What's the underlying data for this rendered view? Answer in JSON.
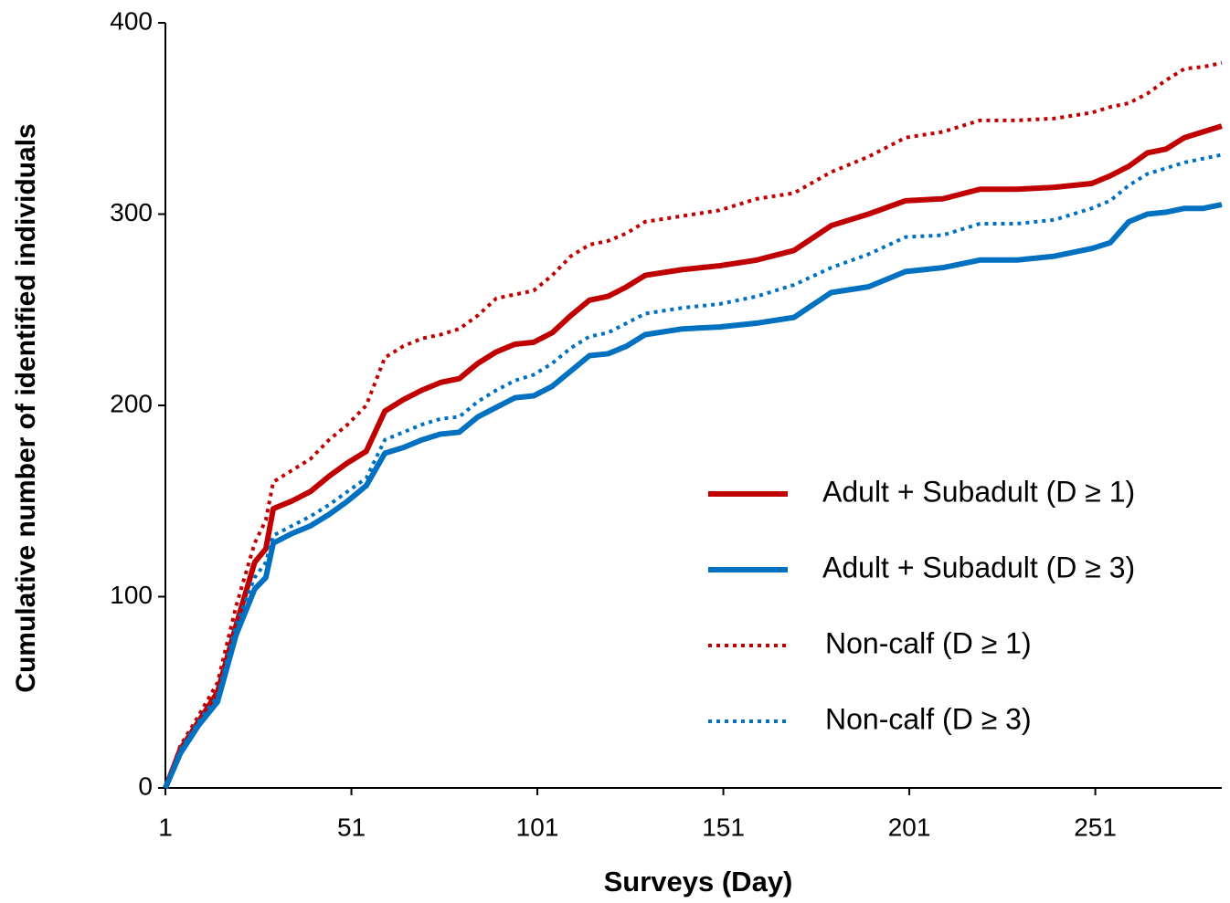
{
  "chart_data": {
    "type": "line",
    "xlabel": "Surveys  (Day)",
    "ylabel": "Cumulative number of identified individuals",
    "x": [
      1,
      5,
      10,
      15,
      20,
      25,
      28,
      30,
      35,
      40,
      45,
      50,
      55,
      60,
      65,
      70,
      75,
      80,
      85,
      90,
      95,
      100,
      105,
      110,
      115,
      120,
      125,
      130,
      140,
      150,
      160,
      170,
      180,
      190,
      200,
      210,
      220,
      230,
      240,
      250,
      255,
      260,
      265,
      270,
      275,
      280,
      285
    ],
    "series": [
      {
        "name": "Adult + Subadult (D ≥ 1)",
        "color": "#c00000",
        "dash": "solid",
        "values": [
          0,
          20,
          35,
          50,
          85,
          118,
          125,
          146,
          150,
          155,
          163,
          170,
          176,
          197,
          203,
          208,
          212,
          214,
          222,
          228,
          232,
          233,
          238,
          247,
          255,
          257,
          262,
          268,
          271,
          273,
          276,
          281,
          294,
          300,
          307,
          308,
          313,
          313,
          314,
          316,
          320,
          325,
          332,
          334,
          340,
          343,
          346
        ]
      },
      {
        "name": "Adult + Subadult (D ≥ 3)",
        "color": "#0070c0",
        "dash": "solid",
        "values": [
          0,
          18,
          33,
          45,
          80,
          104,
          110,
          128,
          133,
          137,
          143,
          150,
          158,
          175,
          178,
          182,
          185,
          186,
          194,
          199,
          204,
          205,
          210,
          218,
          226,
          227,
          231,
          237,
          240,
          241,
          243,
          246,
          259,
          262,
          270,
          272,
          276,
          276,
          278,
          282,
          285,
          296,
          300,
          301,
          303,
          303,
          305
        ]
      },
      {
        "name": "Non-calf (D ≥ 1)",
        "color": "#c00000",
        "dash": "dotted",
        "values": [
          0,
          22,
          38,
          55,
          95,
          128,
          140,
          160,
          166,
          172,
          182,
          190,
          200,
          225,
          231,
          235,
          237,
          240,
          247,
          256,
          258,
          260,
          268,
          278,
          284,
          286,
          290,
          296,
          299,
          302,
          308,
          311,
          322,
          330,
          340,
          343,
          349,
          349,
          350,
          353,
          356,
          358,
          363,
          370,
          376,
          377,
          379
        ]
      },
      {
        "name": "Non-calf (D ≥ 3)",
        "color": "#0070c0",
        "dash": "dotted",
        "values": [
          0,
          20,
          35,
          48,
          85,
          110,
          118,
          132,
          137,
          142,
          148,
          155,
          162,
          182,
          186,
          190,
          193,
          194,
          202,
          208,
          213,
          216,
          222,
          230,
          236,
          238,
          243,
          248,
          251,
          253,
          257,
          263,
          272,
          279,
          288,
          289,
          295,
          295,
          297,
          303,
          307,
          315,
          321,
          324,
          327,
          329,
          331
        ]
      }
    ],
    "xlim": [
      1,
      285
    ],
    "xticks": [
      1,
      51,
      101,
      151,
      201,
      251
    ],
    "ylim": [
      0,
      400
    ],
    "yticks": [
      0,
      100,
      200,
      300,
      400
    ],
    "legend": "right"
  }
}
